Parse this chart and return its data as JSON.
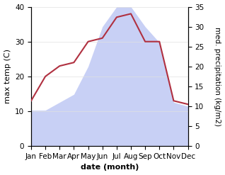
{
  "months": [
    "Jan",
    "Feb",
    "Mar",
    "Apr",
    "May",
    "Jun",
    "Jul",
    "Aug",
    "Sep",
    "Oct",
    "Nov",
    "Dec"
  ],
  "temperature": [
    13,
    20,
    23,
    24,
    30,
    31,
    37,
    38,
    30,
    30,
    13,
    12
  ],
  "precipitation": [
    9,
    9,
    11,
    13,
    20,
    30,
    35,
    35,
    30,
    26,
    11,
    10
  ],
  "temp_color": "#b03040",
  "precip_color_fill": "#c8d0f5",
  "xlabel": "date (month)",
  "ylabel_left": "max temp (C)",
  "ylabel_right": "med. precipitation (kg/m2)",
  "ylim_left": [
    0,
    40
  ],
  "ylim_right": [
    0,
    35
  ],
  "yticks_left": [
    0,
    10,
    20,
    30,
    40
  ],
  "yticks_right": [
    0,
    5,
    10,
    15,
    20,
    25,
    30,
    35
  ],
  "bg_color": "#ffffff",
  "label_fontsize": 8,
  "tick_fontsize": 7.5
}
